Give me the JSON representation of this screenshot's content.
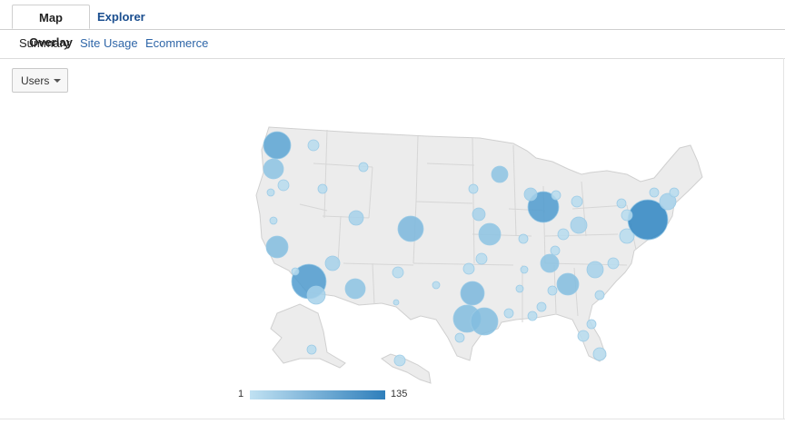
{
  "tabs": {
    "active": "Map Overlay",
    "other": "Explorer"
  },
  "subnav": {
    "active": "Summary",
    "links": [
      "Site Usage",
      "Ecommerce"
    ]
  },
  "metric_dropdown": {
    "selected": "Users"
  },
  "legend": {
    "min": "1",
    "max": "135",
    "min_color": "#c0e1f2",
    "max_color": "#2f7fbb"
  },
  "map": {
    "region": "United States",
    "land_color": "#ececec",
    "border_color": "#cfcfcf"
  },
  "colors": {
    "tab_text": "#1a4e8f",
    "link": "#2f66a8",
    "bubble_light": "#a9d4ec",
    "bubble_dark": "#2f7fbb"
  }
}
